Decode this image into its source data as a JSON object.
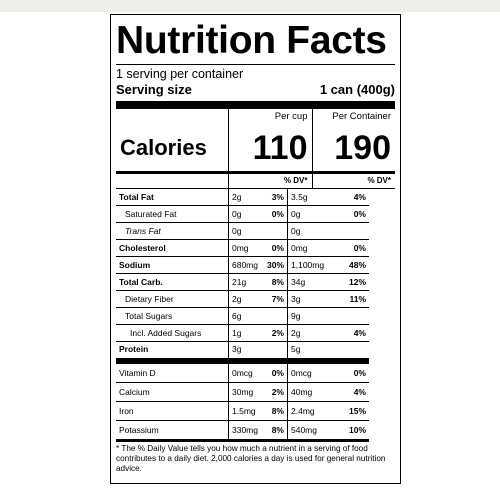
{
  "label": {
    "title": "Nutrition Facts",
    "servings_per_container": "1 serving per container",
    "serving_size_label": "Serving size",
    "serving_size_value": "1 can (400g)",
    "col_per_cup": "Per cup",
    "col_per_container": "Per Container",
    "calories_label": "Calories",
    "calories_per_cup": "110",
    "calories_per_container": "190",
    "dv_header": "% DV*",
    "nutrients": [
      {
        "name": "Total Fat",
        "cup_amt": "2g",
        "cup_dv": "3%",
        "cont_amt": "3.5g",
        "cont_dv": "4%"
      },
      {
        "name": "Saturated Fat",
        "cup_amt": "0g",
        "cup_dv": "0%",
        "cont_amt": "0g",
        "cont_dv": "0%"
      },
      {
        "name": "Trans Fat",
        "cup_amt": "0g",
        "cup_dv": "",
        "cont_amt": "0g",
        "cont_dv": ""
      },
      {
        "name": "Cholesterol",
        "cup_amt": "0mg",
        "cup_dv": "0%",
        "cont_amt": "0mg",
        "cont_dv": "0%"
      },
      {
        "name": "Sodium",
        "cup_amt": "680mg",
        "cup_dv": "30%",
        "cont_amt": "1,100mg",
        "cont_dv": "48%"
      },
      {
        "name": "Total Carb.",
        "cup_amt": "21g",
        "cup_dv": "8%",
        "cont_amt": "34g",
        "cont_dv": "12%"
      },
      {
        "name": "Dietary Fiber",
        "cup_amt": "2g",
        "cup_dv": "7%",
        "cont_amt": "3g",
        "cont_dv": "11%"
      },
      {
        "name": "Total Sugars",
        "cup_amt": "6g",
        "cup_dv": "",
        "cont_amt": "9g",
        "cont_dv": ""
      },
      {
        "name": "Incl. Added Sugars",
        "cup_amt": "1g",
        "cup_dv": "2%",
        "cont_amt": "2g",
        "cont_dv": "4%"
      },
      {
        "name": "Protein",
        "cup_amt": "3g",
        "cup_dv": "",
        "cont_amt": "5g",
        "cont_dv": ""
      }
    ],
    "vitamins": [
      {
        "name": "Vitamin D",
        "cup_amt": "0mcg",
        "cup_dv": "0%",
        "cont_amt": "0mcg",
        "cont_dv": "0%"
      },
      {
        "name": "Calcium",
        "cup_amt": "30mg",
        "cup_dv": "2%",
        "cont_amt": "40mg",
        "cont_dv": "4%"
      },
      {
        "name": "Iron",
        "cup_amt": "1.5mg",
        "cup_dv": "8%",
        "cont_amt": "2.4mg",
        "cont_dv": "15%"
      },
      {
        "name": "Potassium",
        "cup_amt": "330mg",
        "cup_dv": "8%",
        "cont_amt": "540mg",
        "cont_dv": "10%"
      }
    ],
    "footnote": "* The % Daily Value tells you how much a nutrient in a serving of food contributes to a daily diet. 2,000 calories a day is used for general nutrition advice."
  }
}
